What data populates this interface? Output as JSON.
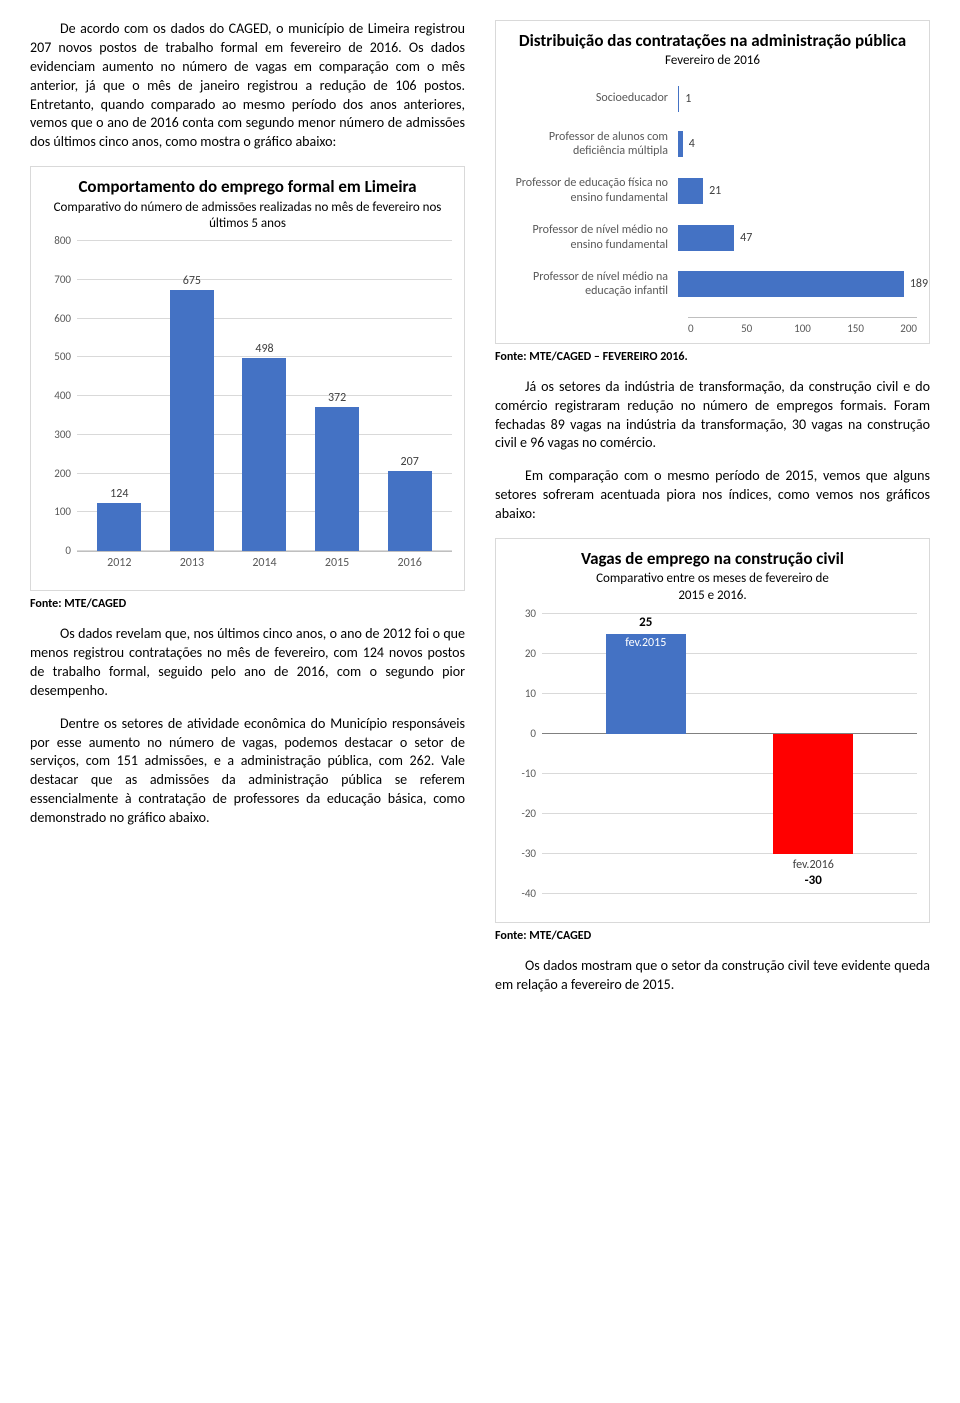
{
  "paragraphs": {
    "p1": "De acordo com os dados do CAGED, o município de Limeira registrou 207 novos postos de trabalho formal em fevereiro de 2016. Os dados evidenciam aumento no número de vagas em comparação com o mês anterior, já que o mês de janeiro registrou a redução de 106 postos. Entretanto, quando comparado ao mesmo período dos anos anteriores, vemos que o ano de 2016 conta com segundo menor número de admissões dos últimos cinco anos, como mostra o gráfico abaixo:",
    "p2": "Os dados revelam que, nos últimos cinco anos, o ano de 2012 foi o que menos registrou contratações no mês de fevereiro, com 124 novos postos de trabalho formal, seguido pelo ano de 2016, com o segundo pior desempenho.",
    "p3": "Dentre os setores de atividade econômica do Município responsáveis por esse aumento no número de vagas, podemos destacar o setor de serviços, com 151 admissões, e a administração pública, com 262. Vale destacar que as admissões da administração pública se referem essencialmente à contratação de professores da educação básica, como demonstrado no gráfico abaixo.",
    "p4": "Já os setores da indústria de transformação, da construção civil e do comércio registraram redução no número de empregos formais. Foram fechadas 89 vagas na indústria da transformação, 30 vagas na construção civil e 96 vagas no comércio.",
    "p5": "Em comparação com o mesmo período de 2015, vemos que alguns setores sofreram acentuada piora nos índices, como vemos nos gráficos abaixo:",
    "p6": "Os dados mostram que o setor da construção civil teve evidente queda em relação a fevereiro de 2015."
  },
  "chart1": {
    "title": "Comportamento do emprego formal em Limeira",
    "subtitle": "Comparativo do número de admissões realizadas no mês de fevereiro nos últimos 5 anos",
    "categories": [
      "2012",
      "2013",
      "2014",
      "2015",
      "2016"
    ],
    "values": [
      124,
      675,
      498,
      372,
      207
    ],
    "ymax": 800,
    "ystep": 100,
    "bar_color": "#4472c4",
    "grid_color": "#d9d9d9",
    "source": "Fonte: MTE/CAGED"
  },
  "chart2": {
    "title": "Distribuição das contratações na administração pública",
    "subtitle": "Fevereiro de 2016",
    "categories": [
      "Socioeducador",
      "Professor de alunos com deficiência múltipla",
      "Professor de educação física no ensino fundamental",
      "Professor de nível médio no ensino fundamental",
      "Professor de nível médio na educação infantil"
    ],
    "values": [
      1,
      4,
      21,
      47,
      189
    ],
    "xmax": 200,
    "xstep": 50,
    "bar_color": "#4472c4",
    "source": "Fonte: MTE/CAGED – FEVEREIRO 2016."
  },
  "chart3": {
    "title": "Vagas de emprego na construção civil",
    "subtitle_line1": "Comparativo entre os meses de fevereiro de",
    "subtitle_line2": "2015 e 2016.",
    "series": [
      {
        "label": "25",
        "sublabel": "fev.2015",
        "value": 25,
        "color": "#4472c4"
      },
      {
        "label": "-30",
        "sublabel": "fev.2016",
        "value": -30,
        "color": "#ff0000"
      }
    ],
    "ymin": -40,
    "ymax": 30,
    "ystep": 10,
    "source": "Fonte: MTE/CAGED"
  }
}
